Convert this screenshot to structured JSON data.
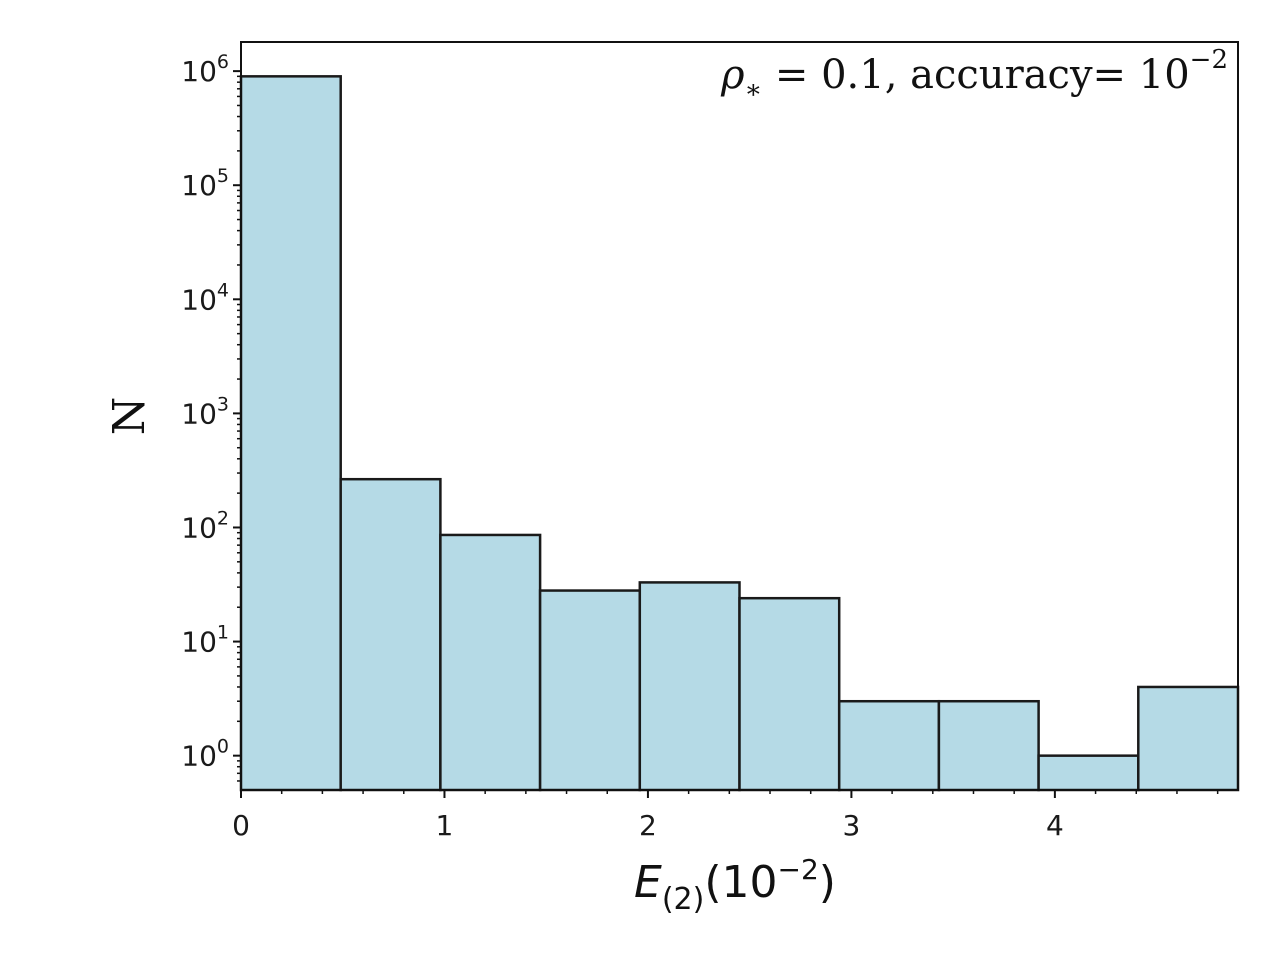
{
  "chart_data": {
    "type": "bar",
    "subtype": "histogram",
    "bar_color": "#b5dae6",
    "edge_color": "#1a1a1a",
    "y_scale": "log",
    "bins": [
      {
        "x0": 0.0,
        "x1": 0.49,
        "count": 900000
      },
      {
        "x0": 0.49,
        "x1": 0.98,
        "count": 265
      },
      {
        "x0": 0.98,
        "x1": 1.47,
        "count": 86
      },
      {
        "x0": 1.47,
        "x1": 1.96,
        "count": 28
      },
      {
        "x0": 1.96,
        "x1": 2.45,
        "count": 33
      },
      {
        "x0": 2.45,
        "x1": 2.94,
        "count": 24
      },
      {
        "x0": 2.94,
        "x1": 3.43,
        "count": 3
      },
      {
        "x0": 3.43,
        "x1": 3.92,
        "count": 3
      },
      {
        "x0": 3.92,
        "x1": 4.41,
        "count": 1
      },
      {
        "x0": 4.41,
        "x1": 4.9,
        "count": 4
      }
    ],
    "xlim": [
      0,
      4.9
    ],
    "ylim": [
      0.5,
      1800000
    ],
    "x_ticks": [
      0,
      1,
      2,
      3,
      4
    ],
    "x_tick_labels": [
      "0",
      "1",
      "2",
      "3",
      "4"
    ],
    "y_ticks": [
      1,
      10,
      100,
      1000,
      10000,
      100000,
      1000000
    ],
    "y_tick_labels": [
      {
        "base": "10",
        "exp": "0"
      },
      {
        "base": "10",
        "exp": "1"
      },
      {
        "base": "10",
        "exp": "2"
      },
      {
        "base": "10",
        "exp": "3"
      },
      {
        "base": "10",
        "exp": "4"
      },
      {
        "base": "10",
        "exp": "5"
      },
      {
        "base": "10",
        "exp": "6"
      }
    ],
    "ylabel": "N",
    "xlabel": {
      "main": "E",
      "sub": "(2)",
      "paren_open": "(10",
      "exp": "−2",
      "paren_close": ")"
    },
    "annotation": {
      "rho_symbol": "ρ",
      "rho_sub": "∗",
      "rho_eq": " = 0.1, ",
      "accuracy_text": "accuracy= 10",
      "accuracy_exp": "−2"
    }
  }
}
